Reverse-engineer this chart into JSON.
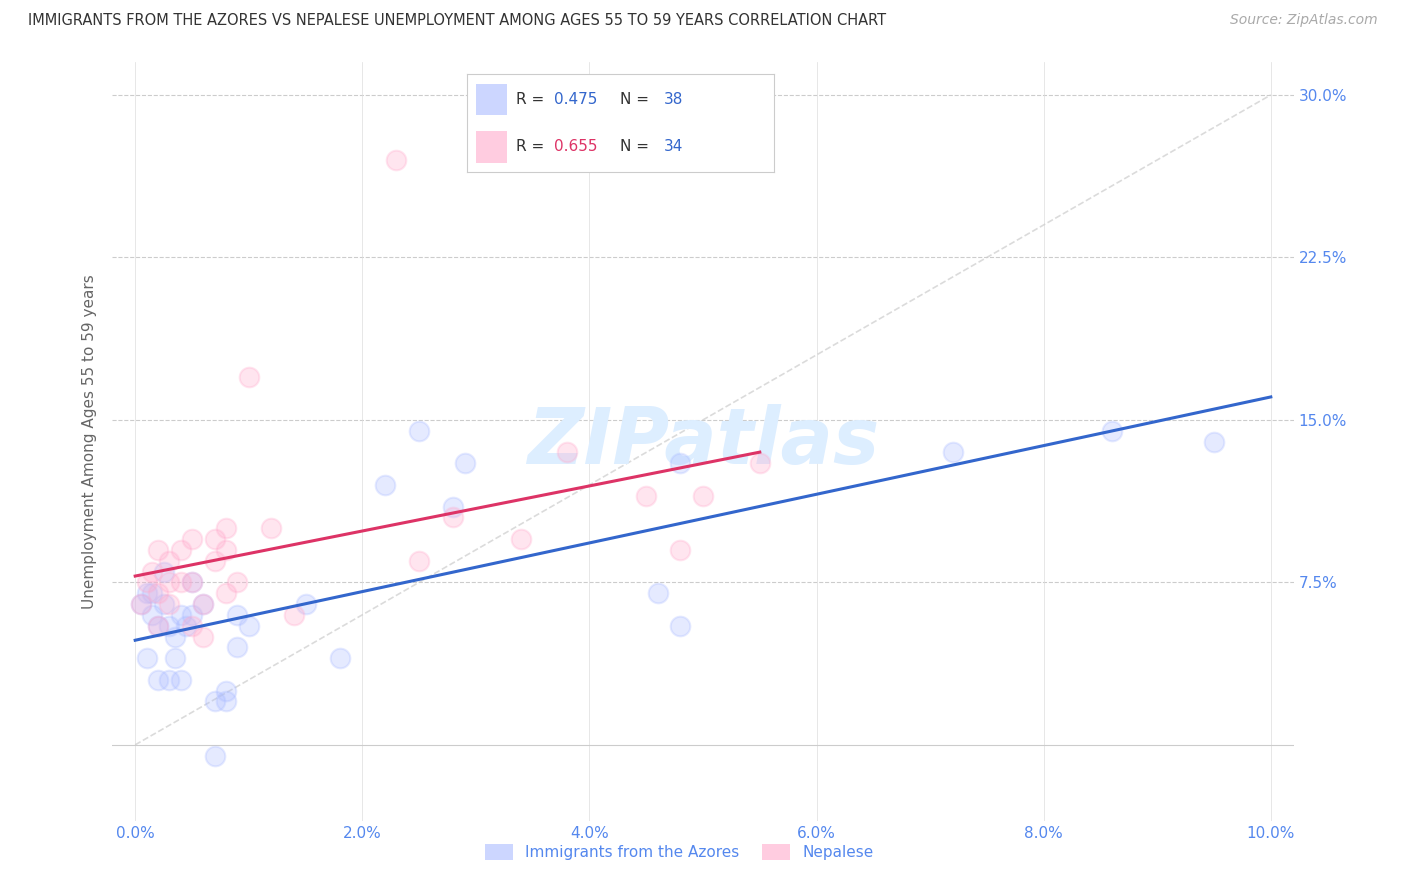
{
  "title": "IMMIGRANTS FROM THE AZORES VS NEPALESE UNEMPLOYMENT AMONG AGES 55 TO 59 YEARS CORRELATION CHART",
  "source": "Source: ZipAtlas.com",
  "ylabel_label": "Unemployment Among Ages 55 to 59 years",
  "legend_label1": "Immigrants from the Azores",
  "legend_label2": "Nepalese",
  "R1": 0.475,
  "N1": 38,
  "R2": 0.655,
  "N2": 34,
  "color_blue": "#aabbff",
  "color_pink": "#ffaacc",
  "color_line_blue": "#3366cc",
  "color_line_pink": "#dd3366",
  "color_diag": "#cccccc",
  "color_axis_blue": "#5588ee",
  "color_r_blue": "#3366cc",
  "color_r_pink": "#dd3366",
  "color_n": "#3366cc",
  "watermark_color": "#ddeeff",
  "xlim": [
    -0.002,
    0.102
  ],
  "ylim": [
    -0.035,
    0.315
  ],
  "x_ticks": [
    0.0,
    0.02,
    0.04,
    0.06,
    0.08,
    0.1
  ],
  "y_ticks": [
    0.075,
    0.15,
    0.225,
    0.3
  ],
  "blue_x": [
    0.0005,
    0.001,
    0.001,
    0.0015,
    0.0015,
    0.002,
    0.002,
    0.0025,
    0.0025,
    0.003,
    0.003,
    0.0035,
    0.0035,
    0.004,
    0.004,
    0.0045,
    0.005,
    0.005,
    0.006,
    0.007,
    0.007,
    0.008,
    0.008,
    0.009,
    0.009,
    0.01,
    0.015,
    0.018,
    0.022,
    0.025,
    0.028,
    0.029,
    0.046,
    0.048,
    0.048,
    0.072,
    0.086,
    0.095
  ],
  "blue_y": [
    0.065,
    0.04,
    0.07,
    0.06,
    0.07,
    0.03,
    0.055,
    0.065,
    0.08,
    0.03,
    0.055,
    0.04,
    0.05,
    0.03,
    0.06,
    0.055,
    0.06,
    0.075,
    0.065,
    -0.005,
    0.02,
    0.02,
    0.025,
    0.045,
    0.06,
    0.055,
    0.065,
    0.04,
    0.12,
    0.145,
    0.11,
    0.13,
    0.07,
    0.055,
    0.13,
    0.135,
    0.145,
    0.14
  ],
  "pink_x": [
    0.0005,
    0.001,
    0.0015,
    0.002,
    0.002,
    0.002,
    0.003,
    0.003,
    0.003,
    0.004,
    0.004,
    0.005,
    0.005,
    0.005,
    0.006,
    0.006,
    0.007,
    0.007,
    0.008,
    0.008,
    0.008,
    0.009,
    0.01,
    0.012,
    0.014,
    0.023,
    0.025,
    0.028,
    0.034,
    0.038,
    0.045,
    0.048,
    0.05,
    0.055
  ],
  "pink_y": [
    0.065,
    0.075,
    0.08,
    0.055,
    0.07,
    0.09,
    0.065,
    0.075,
    0.085,
    0.075,
    0.09,
    0.055,
    0.075,
    0.095,
    0.05,
    0.065,
    0.085,
    0.095,
    0.07,
    0.09,
    0.1,
    0.075,
    0.17,
    0.1,
    0.06,
    0.27,
    0.085,
    0.105,
    0.095,
    0.135,
    0.115,
    0.09,
    0.115,
    0.13
  ],
  "marker_size": 200,
  "marker_alpha": 0.3,
  "marker_lw": 1.5
}
